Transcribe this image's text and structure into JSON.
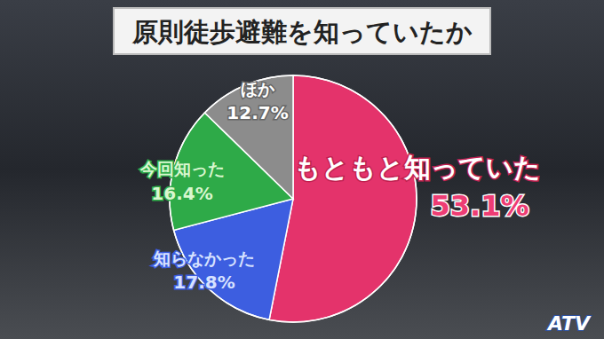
{
  "chart_data": {
    "type": "pie",
    "title": "原則徒歩避難を知っていたか",
    "categories": [
      "もともと知っていた",
      "知らなかった",
      "今回知った",
      "ほか"
    ],
    "values": [
      53.1,
      17.8,
      16.4,
      12.7
    ],
    "value_labels": [
      "53.1%",
      "17.8%",
      "16.4%",
      "12.7%"
    ],
    "colors": [
      "#e4336b",
      "#3d5ee0",
      "#2eaa48",
      "#8c8c8c"
    ],
    "data_labels": true
  },
  "logo": "ATV"
}
